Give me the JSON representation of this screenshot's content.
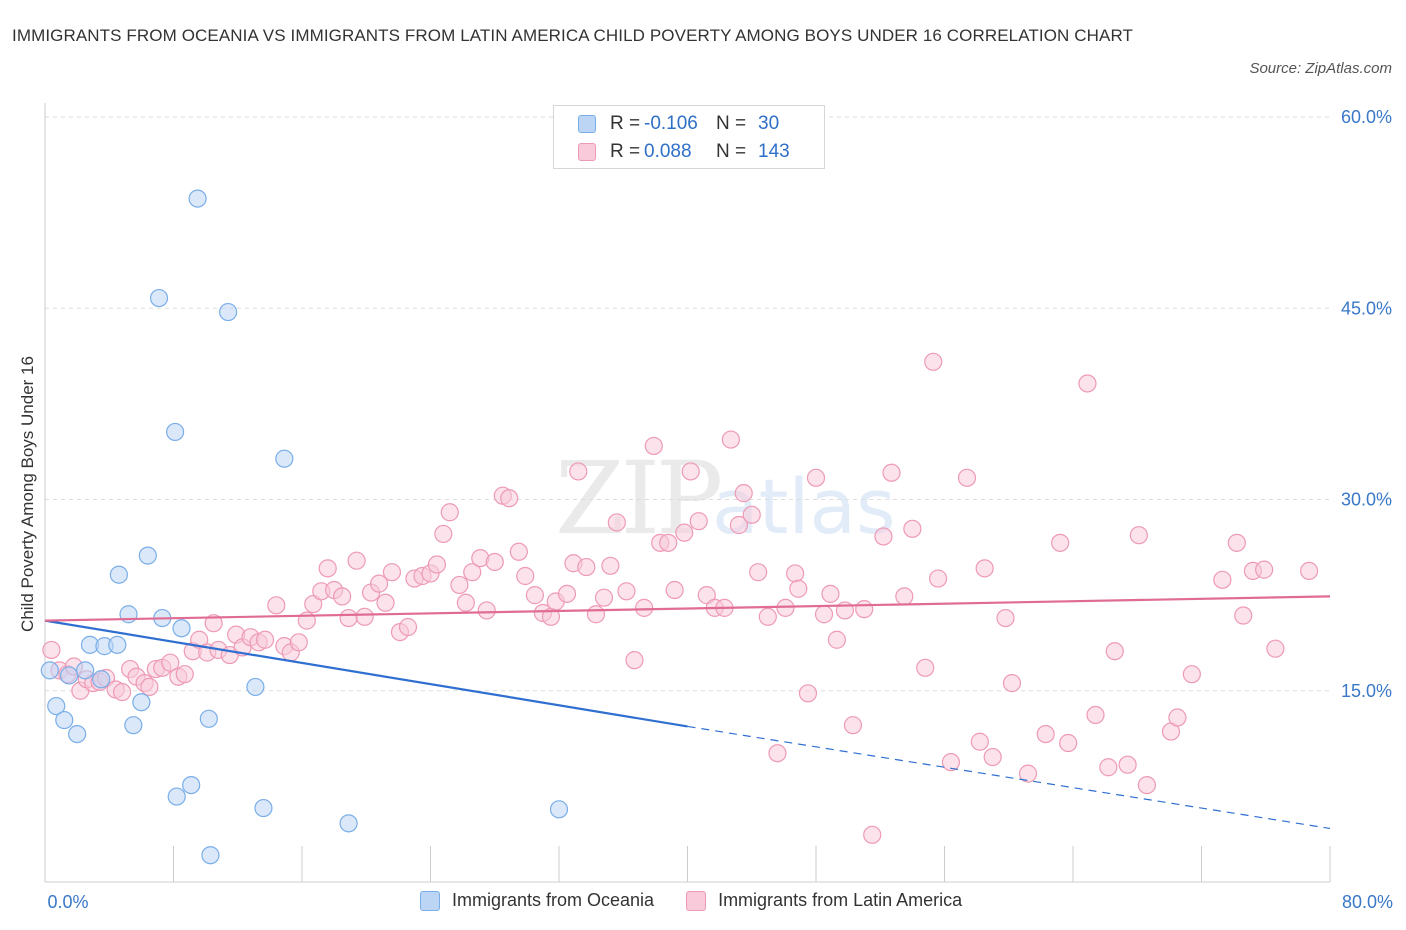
{
  "chart_data": {
    "type": "scatter",
    "title": "IMMIGRANTS FROM OCEANIA VS IMMIGRANTS FROM LATIN AMERICA CHILD POVERTY AMONG BOYS UNDER 16 CORRELATION CHART",
    "source": "Source: ZipAtlas.com",
    "ylabel": "Child Poverty Among Boys Under 16",
    "xlabel": "",
    "xlim": [
      0,
      80
    ],
    "ylim": [
      0,
      60
    ],
    "x_tick_labels": [
      "0.0%",
      "80.0%"
    ],
    "y_tick_labels": [
      "15.0%",
      "30.0%",
      "45.0%",
      "60.0%"
    ],
    "y_ticks": [
      15,
      30,
      45,
      60
    ],
    "watermark": [
      "ZIP",
      "atlas"
    ],
    "legend": {
      "rows": [
        {
          "r_label": "R =",
          "r_value": "-0.106",
          "n_label": "N =",
          "n_value": "30"
        },
        {
          "r_label": "R =",
          "r_value": "0.088",
          "n_label": "N =",
          "n_value": "143"
        }
      ]
    },
    "series": [
      {
        "name": "Immigrants from Oceania",
        "color": "#7aaee8",
        "fill": "#bcd5f5",
        "trend": {
          "x0": 0,
          "y0": 20.5,
          "x1": 40,
          "y1": 12.2,
          "dash_x1": 80,
          "dash_y1": 4.2
        },
        "points": [
          [
            0.3,
            16.6
          ],
          [
            0.7,
            13.8
          ],
          [
            1.2,
            12.7
          ],
          [
            1.5,
            16.2
          ],
          [
            2.0,
            11.6
          ],
          [
            2.5,
            16.6
          ],
          [
            2.8,
            18.6
          ],
          [
            3.5,
            15.9
          ],
          [
            3.7,
            18.5
          ],
          [
            4.5,
            18.6
          ],
          [
            4.6,
            24.1
          ],
          [
            5.2,
            21.0
          ],
          [
            5.5,
            12.3
          ],
          [
            6.0,
            14.1
          ],
          [
            6.4,
            25.6
          ],
          [
            7.1,
            45.8
          ],
          [
            7.3,
            20.7
          ],
          [
            8.1,
            35.3
          ],
          [
            8.2,
            6.7
          ],
          [
            8.5,
            19.9
          ],
          [
            9.1,
            7.6
          ],
          [
            9.5,
            53.6
          ],
          [
            10.2,
            12.8
          ],
          [
            10.3,
            2.1
          ],
          [
            11.4,
            44.7
          ],
          [
            13.1,
            15.3
          ],
          [
            13.6,
            5.8
          ],
          [
            14.9,
            33.2
          ],
          [
            18.9,
            4.6
          ],
          [
            32.0,
            5.7
          ]
        ]
      },
      {
        "name": "Immigrants from Latin America",
        "color": "#ee9ab5",
        "fill": "#f8cada",
        "trend": {
          "x0": 0,
          "y0": 20.5,
          "x1": 80,
          "y1": 22.4
        },
        "points": [
          [
            0.4,
            18.2
          ],
          [
            0.9,
            16.6
          ],
          [
            1.4,
            16.3
          ],
          [
            1.8,
            16.9
          ],
          [
            2.2,
            15.0
          ],
          [
            2.6,
            15.9
          ],
          [
            3.0,
            15.6
          ],
          [
            3.4,
            15.7
          ],
          [
            3.8,
            16.0
          ],
          [
            4.4,
            15.1
          ],
          [
            4.8,
            14.9
          ],
          [
            5.3,
            16.7
          ],
          [
            5.7,
            16.1
          ],
          [
            6.2,
            15.6
          ],
          [
            6.5,
            15.3
          ],
          [
            6.9,
            16.7
          ],
          [
            7.3,
            16.8
          ],
          [
            7.8,
            17.2
          ],
          [
            8.3,
            16.1
          ],
          [
            8.7,
            16.3
          ],
          [
            9.2,
            18.1
          ],
          [
            9.6,
            19.0
          ],
          [
            10.1,
            18.0
          ],
          [
            10.5,
            20.3
          ],
          [
            10.8,
            18.2
          ],
          [
            11.5,
            17.8
          ],
          [
            11.9,
            19.4
          ],
          [
            12.3,
            18.4
          ],
          [
            12.8,
            19.2
          ],
          [
            13.3,
            18.8
          ],
          [
            13.7,
            19.0
          ],
          [
            14.4,
            21.7
          ],
          [
            14.9,
            18.5
          ],
          [
            15.3,
            18.0
          ],
          [
            15.8,
            18.8
          ],
          [
            16.3,
            20.5
          ],
          [
            16.7,
            21.8
          ],
          [
            17.2,
            22.8
          ],
          [
            17.6,
            24.6
          ],
          [
            18.0,
            22.9
          ],
          [
            18.5,
            22.4
          ],
          [
            18.9,
            20.7
          ],
          [
            19.4,
            25.2
          ],
          [
            19.9,
            20.8
          ],
          [
            20.3,
            22.7
          ],
          [
            20.8,
            23.4
          ],
          [
            21.2,
            21.9
          ],
          [
            21.6,
            24.3
          ],
          [
            22.1,
            19.6
          ],
          [
            22.6,
            20.0
          ],
          [
            23.0,
            23.8
          ],
          [
            23.5,
            24.0
          ],
          [
            24.0,
            24.2
          ],
          [
            24.4,
            24.9
          ],
          [
            24.8,
            27.3
          ],
          [
            25.2,
            29.0
          ],
          [
            25.8,
            23.3
          ],
          [
            26.2,
            21.9
          ],
          [
            26.6,
            24.3
          ],
          [
            27.1,
            25.4
          ],
          [
            27.5,
            21.3
          ],
          [
            28.0,
            25.1
          ],
          [
            28.5,
            30.3
          ],
          [
            28.9,
            30.1
          ],
          [
            29.5,
            25.9
          ],
          [
            29.9,
            24.0
          ],
          [
            30.5,
            22.5
          ],
          [
            31.0,
            21.1
          ],
          [
            31.5,
            20.8
          ],
          [
            31.8,
            22.0
          ],
          [
            32.5,
            22.6
          ],
          [
            32.9,
            25.0
          ],
          [
            33.2,
            32.2
          ],
          [
            33.7,
            24.7
          ],
          [
            34.3,
            21.0
          ],
          [
            34.8,
            22.3
          ],
          [
            35.2,
            24.8
          ],
          [
            35.6,
            28.2
          ],
          [
            36.2,
            22.8
          ],
          [
            36.7,
            17.4
          ],
          [
            37.3,
            21.5
          ],
          [
            37.9,
            34.2
          ],
          [
            38.3,
            26.6
          ],
          [
            38.8,
            26.6
          ],
          [
            39.2,
            22.9
          ],
          [
            39.8,
            27.4
          ],
          [
            40.2,
            32.2
          ],
          [
            40.7,
            28.3
          ],
          [
            41.2,
            22.5
          ],
          [
            41.7,
            21.5
          ],
          [
            42.3,
            21.5
          ],
          [
            42.7,
            34.7
          ],
          [
            43.2,
            28.0
          ],
          [
            43.5,
            30.5
          ],
          [
            44.0,
            28.8
          ],
          [
            44.4,
            24.3
          ],
          [
            45.0,
            20.8
          ],
          [
            45.6,
            10.1
          ],
          [
            46.1,
            21.5
          ],
          [
            46.7,
            24.2
          ],
          [
            46.9,
            23.0
          ],
          [
            47.5,
            14.8
          ],
          [
            48.0,
            31.7
          ],
          [
            48.5,
            21.0
          ],
          [
            48.9,
            22.6
          ],
          [
            49.3,
            19.0
          ],
          [
            49.8,
            21.3
          ],
          [
            50.3,
            12.3
          ],
          [
            51.0,
            21.4
          ],
          [
            51.5,
            3.7
          ],
          [
            52.2,
            27.1
          ],
          [
            52.7,
            32.1
          ],
          [
            53.5,
            22.4
          ],
          [
            54.0,
            27.7
          ],
          [
            54.8,
            16.8
          ],
          [
            55.3,
            40.8
          ],
          [
            55.6,
            23.8
          ],
          [
            56.4,
            9.4
          ],
          [
            57.4,
            31.7
          ],
          [
            58.2,
            11.0
          ],
          [
            58.5,
            24.6
          ],
          [
            59.0,
            9.8
          ],
          [
            59.8,
            20.7
          ],
          [
            60.2,
            15.6
          ],
          [
            61.2,
            8.5
          ],
          [
            62.3,
            11.6
          ],
          [
            63.2,
            26.6
          ],
          [
            63.7,
            10.9
          ],
          [
            64.9,
            39.1
          ],
          [
            65.4,
            13.1
          ],
          [
            66.2,
            9.0
          ],
          [
            66.6,
            18.1
          ],
          [
            67.4,
            9.2
          ],
          [
            68.1,
            27.2
          ],
          [
            68.6,
            7.6
          ],
          [
            70.1,
            11.8
          ],
          [
            70.5,
            12.9
          ],
          [
            71.4,
            16.3
          ],
          [
            73.3,
            23.7
          ],
          [
            74.2,
            26.6
          ],
          [
            74.6,
            20.9
          ],
          [
            75.2,
            24.4
          ],
          [
            75.9,
            24.5
          ],
          [
            76.6,
            18.3
          ],
          [
            78.7,
            24.4
          ]
        ]
      }
    ]
  }
}
